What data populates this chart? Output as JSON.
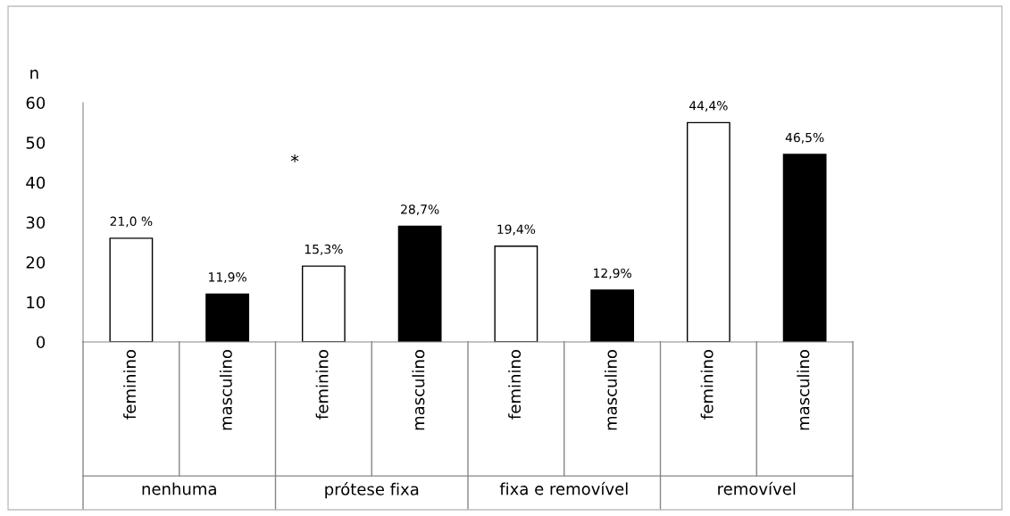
{
  "chart_data": {
    "type": "bar",
    "ylabel": "n",
    "categories": [
      "feminino",
      "masculino",
      "feminino",
      "masculino",
      "feminino",
      "masculino",
      "feminino",
      "masculino"
    ],
    "values": [
      26,
      12,
      19,
      29,
      24,
      13,
      55,
      47
    ],
    "colors": [
      "#ffffff",
      "#000000",
      "#ffffff",
      "#000000",
      "#ffffff",
      "#000000",
      "#ffffff",
      "#000000"
    ],
    "ylim": [
      0,
      60
    ],
    "yticks": [
      0,
      10,
      20,
      30,
      40,
      50,
      60
    ],
    "grid": false,
    "legend": false,
    "annotations": [
      "*",
      "21,0 %",
      "11,9%",
      "15,3%",
      "28,7%",
      "19,4%",
      "12,9%",
      "44,4%",
      "46,5%",
      "nenhuma",
      "prótese fixa",
      "fixa e removível",
      "removível"
    ]
  }
}
